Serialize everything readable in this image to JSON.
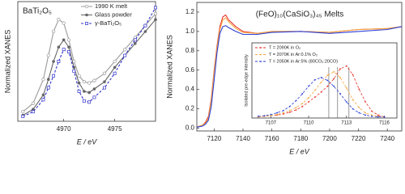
{
  "chart_data": [
    {
      "type": "line",
      "title": "BaTi₂O₅",
      "xlabel": "E / eV",
      "ylabel": "Normalized XANES",
      "x": [
        4966,
        4967,
        4968,
        4968.5,
        4969,
        4969.5,
        4970,
        4970.5,
        4971,
        4971.5,
        4972,
        4972.5,
        4973,
        4974,
        4975,
        4976,
        4977,
        4978,
        4979
      ],
      "xlim": [
        4965.5,
        4979
      ],
      "xticks": [
        4970,
        4975
      ],
      "ylim": [
        0,
        1
      ],
      "legend": "upper right",
      "series": [
        {
          "name": "1990 K melt",
          "color": "#9a9a9a",
          "marker": "circle-open",
          "dash": false,
          "values": [
            0.08,
            0.15,
            0.35,
            0.55,
            0.75,
            0.85,
            0.82,
            0.68,
            0.5,
            0.38,
            0.33,
            0.32,
            0.34,
            0.4,
            0.5,
            0.6,
            0.7,
            0.8,
            0.9
          ]
        },
        {
          "name": "Glass powder",
          "color": "#666666",
          "marker": "circle",
          "dash": false,
          "values": [
            0.05,
            0.1,
            0.22,
            0.35,
            0.5,
            0.62,
            0.68,
            0.62,
            0.45,
            0.32,
            0.25,
            0.24,
            0.27,
            0.33,
            0.45,
            0.55,
            0.65,
            0.75,
            0.85
          ]
        },
        {
          "name": "γ-BaTi₂O₅",
          "color": "#3333cc",
          "marker": "square-open",
          "dash": true,
          "values": [
            0.04,
            0.08,
            0.18,
            0.28,
            0.38,
            0.5,
            0.6,
            0.58,
            0.42,
            0.25,
            0.17,
            0.16,
            0.2,
            0.28,
            0.4,
            0.55,
            0.68,
            0.8,
            0.95
          ]
        }
      ]
    },
    {
      "type": "line",
      "title": "(FeO)₁₀(CaSiO₃)₄₅ Melts",
      "xlabel": "E / eV",
      "ylabel": "Normalized XANES",
      "x": [
        7108,
        7112,
        7114,
        7116,
        7118,
        7120,
        7122,
        7124,
        7126,
        7128,
        7130,
        7135,
        7140,
        7150,
        7160,
        7180,
        7200,
        7220,
        7240,
        7250
      ],
      "xlim": [
        7108,
        7250
      ],
      "xticks": [
        7120,
        7140,
        7160,
        7180,
        7200,
        7220,
        7240
      ],
      "ylim": [
        -0.03,
        1.3
      ],
      "yticks": [
        {
          "value": 0,
          "label": "0.0"
        },
        0.2,
        0.4,
        0.6,
        0.8,
        {
          "value": 1,
          "label": "1.0"
        },
        1.2
      ],
      "series": [
        {
          "name": "2090K",
          "color": "#e8322b",
          "marker": "none",
          "dash": false,
          "values": [
            0.01,
            0.03,
            0.06,
            0.12,
            0.3,
            0.6,
            0.85,
            1.05,
            1.15,
            1.17,
            1.12,
            1.05,
            1.0,
            0.98,
            1.0,
            1.0,
            0.99,
            1.02,
            1.03,
            1.05
          ]
        },
        {
          "name": "2070K",
          "color": "#f4a640",
          "marker": "none",
          "dash": false,
          "values": [
            0.01,
            0.03,
            0.05,
            0.1,
            0.28,
            0.58,
            0.83,
            1.02,
            1.12,
            1.14,
            1.1,
            1.03,
            0.99,
            0.98,
            1.0,
            1.0,
            0.99,
            1.02,
            1.03,
            1.05
          ]
        },
        {
          "name": "2050K",
          "color": "#2b3fd6",
          "marker": "none",
          "dash": false,
          "values": [
            0.01,
            0.02,
            0.04,
            0.08,
            0.22,
            0.5,
            0.78,
            0.98,
            1.05,
            1.06,
            1.04,
            1.0,
            0.97,
            0.97,
            0.99,
            1.0,
            0.98,
            1.0,
            1.02,
            1.05
          ]
        }
      ]
    },
    {
      "type": "line",
      "ylabel": "Isolated pre-edge intensity",
      "x": [
        7106,
        7106.5,
        7107,
        7107.5,
        7108,
        7108.5,
        7109,
        7109.5,
        7110,
        7110.5,
        7111,
        7111.5,
        7112,
        7112.5,
        7113,
        7113.5,
        7114,
        7114.5,
        7115,
        7115.5,
        7116
      ],
      "xlim": [
        7105.5,
        7117
      ],
      "xticks": [
        7107,
        7110,
        7113,
        7116
      ],
      "ylim": [
        0,
        1.3
      ],
      "legend": "upper left",
      "vlines": [
        7111.6,
        7112.3,
        7113.2
      ],
      "series": [
        {
          "name": "T = 2090K in O₂",
          "color": "#e8322b",
          "marker": "dot",
          "dash": true,
          "values": [
            0.02,
            0.03,
            0.04,
            0.05,
            0.07,
            0.1,
            0.14,
            0.2,
            0.28,
            0.36,
            0.45,
            0.55,
            0.68,
            0.85,
            0.9,
            0.75,
            0.5,
            0.28,
            0.12,
            0.05,
            0.02
          ]
        },
        {
          "name": "T = 2070K in Ar:0.1% O₂",
          "color": "#f4a640",
          "marker": "dot",
          "dash": true,
          "values": [
            0.02,
            0.03,
            0.04,
            0.06,
            0.09,
            0.13,
            0.18,
            0.25,
            0.35,
            0.48,
            0.62,
            0.74,
            0.8,
            0.7,
            0.52,
            0.32,
            0.18,
            0.09,
            0.05,
            0.03,
            0.02
          ]
        },
        {
          "name": "T = 2050K in Ar:5% (80CO₂:20CO)",
          "color": "#2b3fd6",
          "marker": "dot",
          "dash": true,
          "values": [
            0.03,
            0.04,
            0.06,
            0.09,
            0.13,
            0.2,
            0.3,
            0.42,
            0.55,
            0.66,
            0.7,
            0.65,
            0.55,
            0.42,
            0.28,
            0.16,
            0.09,
            0.05,
            0.03,
            0.02,
            0.02
          ]
        }
      ]
    }
  ]
}
